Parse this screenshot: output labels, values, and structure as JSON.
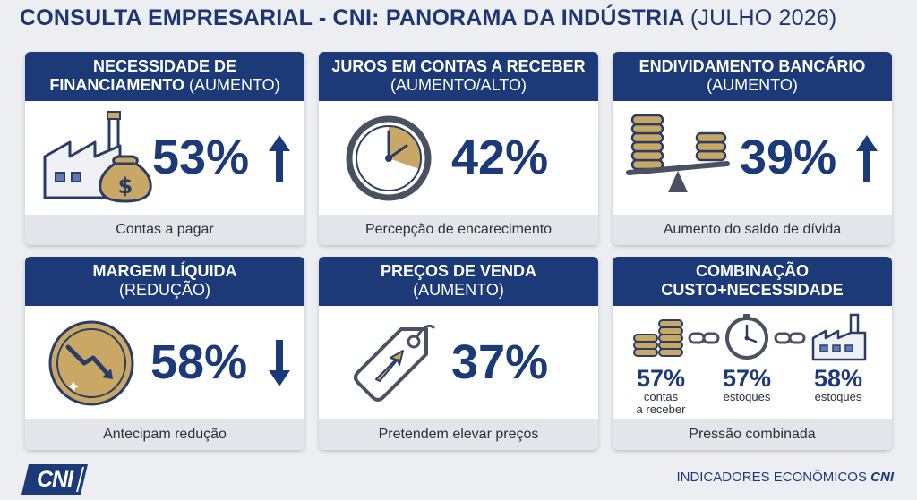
{
  "header": {
    "title": "CONSULTA EMPRESARIAL - CNI: PANORAMA DA INDÚSTRIA",
    "subtitle": "(JULHO 2026)"
  },
  "cards": [
    {
      "title_line1": "NECESSIDADE DE",
      "title_line2_bold": "FINANCIAMENTO",
      "title_line2_rest": " (AUMENTO)",
      "value": "53%",
      "trend": "up",
      "icon": "factory-money-bag-icon",
      "footer": "Contas a pagar"
    },
    {
      "title_line1": "JUROS EM CONTAS A RECEBER",
      "title_line2_bold": "",
      "title_line2_rest": "(AUMENTO/ALTO)",
      "value": "42%",
      "trend": "none",
      "icon": "clock-icon",
      "footer": "Percepção de encarecimento"
    },
    {
      "title_line1": "ENDIVIDAMENTO BANCÁRIO",
      "title_line2_bold": "",
      "title_line2_rest": "(AUMENTO)",
      "value": "39%",
      "trend": "up",
      "icon": "coin-scale-icon",
      "footer": "Aumento do saldo de dívida"
    },
    {
      "title_line1": "MARGEM LÍQUIDA",
      "title_line2_bold": "",
      "title_line2_rest": "(REDUÇÃO)",
      "value": "58%",
      "trend": "down",
      "icon": "declining-coin-icon",
      "footer": "Antecipam redução"
    },
    {
      "title_line1": "PREÇOS DE VENDA",
      "title_line2_bold": "",
      "title_line2_rest": "(AUMENTO)",
      "value": "37%",
      "trend": "none",
      "icon": "price-tag-icon",
      "footer": "Pretendem elevar preços"
    },
    {
      "title_line1": "COMBINAÇÃO",
      "title_line2_bold": "CUSTO+NECESSIDADE",
      "title_line2_rest": "",
      "footer": "Pressão combinada",
      "combo": [
        {
          "value": "57%",
          "label_line1": "contas",
          "label_line2": "a receber",
          "icon": "coin-stack-icon"
        },
        {
          "value": "57%",
          "label_line1": "estoques",
          "label_line2": "",
          "icon": "clock-icon"
        },
        {
          "value": "58%",
          "label_line1": "estoques",
          "label_line2": "",
          "icon": "factory-icon"
        }
      ]
    }
  ],
  "footer": {
    "logo": "CNI",
    "brand_text": "INDICADORES ECONÔMICOS",
    "brand_bold": "CNI"
  },
  "colors": {
    "navy": "#1c3a78",
    "gold": "#c8a864",
    "background": "#eceef2",
    "footer_strip": "#e3e5ea"
  }
}
